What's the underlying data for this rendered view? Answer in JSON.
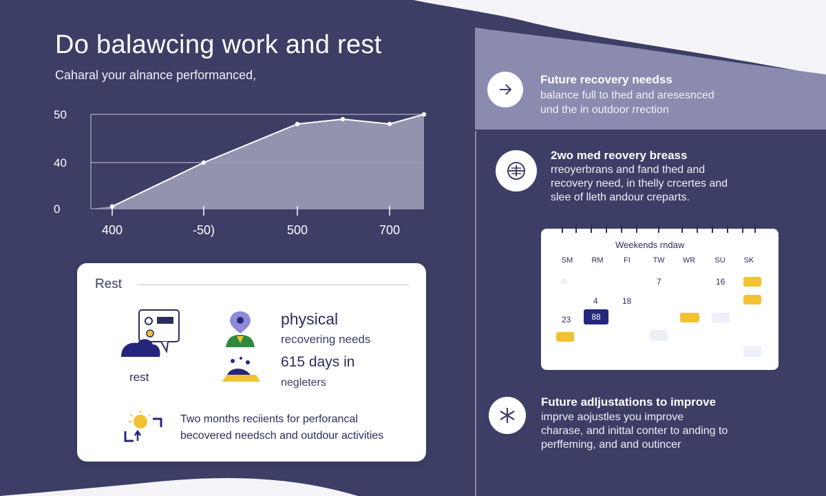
{
  "header": {
    "title": "Do balawcing work and rest",
    "subtitle": "Caharal your alnance performanced,"
  },
  "colors": {
    "navy": "#3c3e66",
    "lavender": "#8b8bb0",
    "chart_fill": "#9c9cb8",
    "accent_yellow": "#f2c233",
    "accent_navy": "#25277a",
    "white": "#ffffff"
  },
  "chart_data": {
    "type": "area",
    "x_tick_labels": [
      "400",
      "-50)",
      "500",
      "700"
    ],
    "y_tick_labels": [
      "50",
      "40",
      "0"
    ],
    "points": [
      {
        "x": "400",
        "y": 2
      },
      {
        "x": "-50)",
        "y": 40
      },
      {
        "x": "500",
        "y": 48
      },
      {
        "x": "",
        "y": 49
      },
      {
        "x": "700",
        "y": 48
      },
      {
        "x": "",
        "y": 50
      }
    ],
    "title": "",
    "xlabel": "",
    "ylabel": "",
    "grid": true
  },
  "rest_card": {
    "title": "Rest",
    "rest_label": "rest",
    "physical_title": "physical",
    "physical_sub": "recovering needs",
    "days_title": "615 days in",
    "days_sub": "negleters",
    "tip_line1": "Two months reciients for perforancal",
    "tip_line2": "becovered needsch and outdour activities",
    "icons": [
      "chat-icon",
      "person-pin-icon",
      "resting-person-icon",
      "sun-icon"
    ]
  },
  "right": {
    "item1": {
      "icon": "arrow-right-icon",
      "title": "Future recovery needss",
      "lines": [
        "balance full to thed and aresesnced",
        "und the in outdoor rrection"
      ]
    },
    "item2": {
      "icon": "target-icon",
      "title": "2wo med reovery breass",
      "lines": [
        "rreoyerbrans and fand thed and",
        "recovery need, in thelly crcertes and",
        "slee of lleth andour creparts."
      ]
    },
    "calendar": {
      "title": "Weekends rndaw",
      "days": [
        "SM",
        "RM",
        "FI",
        "TW",
        "WR",
        "SU",
        "SK"
      ],
      "numbers": [
        "7",
        "16",
        "4",
        "18",
        "23",
        "88"
      ]
    },
    "item3": {
      "icon": "asterisk-icon",
      "title": "Future adljustations to improve",
      "lines": [
        "imprve aojustles you improve",
        "charase, and inittal conter to anding to",
        "perffeming, and and outincer"
      ]
    }
  }
}
